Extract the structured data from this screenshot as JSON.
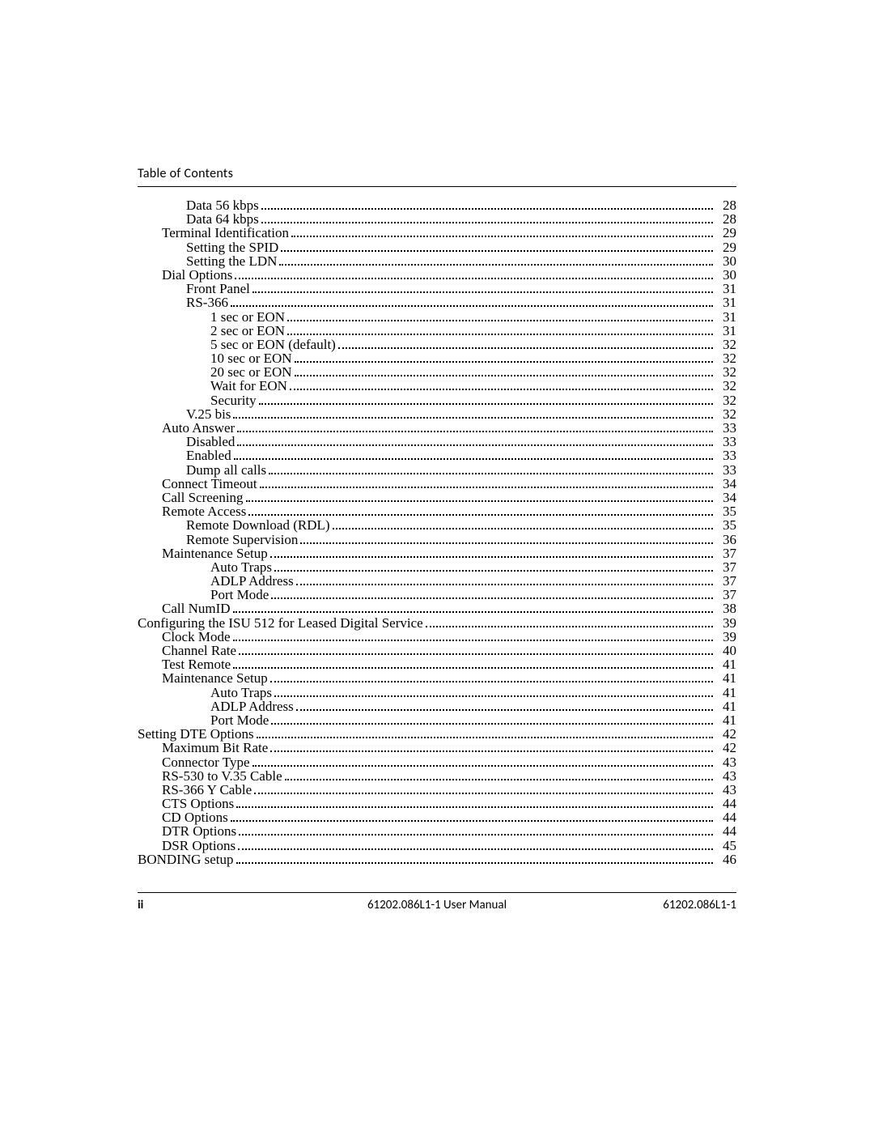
{
  "header": {
    "title": "Table of Contents"
  },
  "footer": {
    "page_roman": "ii",
    "center": "61202.086L1-1 User Manual",
    "right": "61202.086L1-1"
  },
  "toc": [
    {
      "level": 2,
      "title": "Data 56 kbps",
      "page": "28"
    },
    {
      "level": 2,
      "title": "Data 64 kbps",
      "page": "28"
    },
    {
      "level": 1,
      "title": "Terminal Identification",
      "page": "29"
    },
    {
      "level": 2,
      "title": "Setting the SPID",
      "page": "29"
    },
    {
      "level": 2,
      "title": "Setting the LDN",
      "page": "30"
    },
    {
      "level": 1,
      "title": "Dial Options",
      "page": "30"
    },
    {
      "level": 2,
      "title": "Front Panel",
      "page": "31"
    },
    {
      "level": 2,
      "title": "RS-366",
      "page": "31"
    },
    {
      "level": 3,
      "title": "1 sec or EON",
      "page": "31"
    },
    {
      "level": 3,
      "title": "2 sec or EON",
      "page": "31"
    },
    {
      "level": 3,
      "title": "5 sec or EON (default)",
      "page": "32"
    },
    {
      "level": 3,
      "title": "10 sec or EON",
      "page": "32"
    },
    {
      "level": 3,
      "title": "20 sec or EON",
      "page": "32"
    },
    {
      "level": 3,
      "title": "Wait for EON",
      "page": "32"
    },
    {
      "level": 3,
      "title": "Security",
      "page": "32"
    },
    {
      "level": 2,
      "title": "V.25 bis",
      "page": "32"
    },
    {
      "level": 1,
      "title": "Auto Answer",
      "page": "33"
    },
    {
      "level": 2,
      "title": "Disabled",
      "page": "33"
    },
    {
      "level": 2,
      "title": "Enabled",
      "page": "33"
    },
    {
      "level": 2,
      "title": "Dump all calls",
      "page": "33"
    },
    {
      "level": 1,
      "title": "Connect Timeout",
      "page": "34"
    },
    {
      "level": 1,
      "title": "Call Screening",
      "page": "34"
    },
    {
      "level": 1,
      "title": "Remote Access",
      "page": "35"
    },
    {
      "level": 2,
      "title": "Remote Download (RDL)",
      "page": "35"
    },
    {
      "level": 2,
      "title": "Remote Supervision",
      "page": "36"
    },
    {
      "level": 1,
      "title": "Maintenance Setup",
      "page": "37"
    },
    {
      "level": 3,
      "title": "Auto Traps",
      "page": "37"
    },
    {
      "level": 3,
      "title": "ADLP Address",
      "page": "37"
    },
    {
      "level": 3,
      "title": "Port Mode",
      "page": "37"
    },
    {
      "level": 1,
      "title": "Call NumID",
      "page": "38"
    },
    {
      "level": 0,
      "title": "Configuring the ISU 512 for Leased Digital Service",
      "page": "39"
    },
    {
      "level": 1,
      "title": "Clock Mode",
      "page": "39"
    },
    {
      "level": 1,
      "title": "Channel Rate",
      "page": "40"
    },
    {
      "level": 1,
      "title": "Test Remote",
      "page": "41"
    },
    {
      "level": 1,
      "title": "Maintenance Setup",
      "page": "41"
    },
    {
      "level": 3,
      "title": "Auto Traps",
      "page": "41"
    },
    {
      "level": 3,
      "title": "ADLP Address",
      "page": "41"
    },
    {
      "level": 3,
      "title": "Port Mode",
      "page": "41"
    },
    {
      "level": 0,
      "title": "Setting DTE Options",
      "page": "42"
    },
    {
      "level": 1,
      "title": "Maximum Bit Rate",
      "page": "42"
    },
    {
      "level": 1,
      "title": "Connector Type",
      "page": "43"
    },
    {
      "level": 1,
      "title": "RS-530 to V.35 Cable",
      "page": "43"
    },
    {
      "level": 1,
      "title": "RS-366 Y Cable",
      "page": "43"
    },
    {
      "level": 1,
      "title": "CTS Options",
      "page": "44"
    },
    {
      "level": 1,
      "title": "CD Options",
      "page": "44"
    },
    {
      "level": 1,
      "title": "DTR Options",
      "page": "44"
    },
    {
      "level": 1,
      "title": "DSR Options",
      "page": "45"
    },
    {
      "level": 0,
      "title": "BONDING setup",
      "page": "46"
    }
  ]
}
